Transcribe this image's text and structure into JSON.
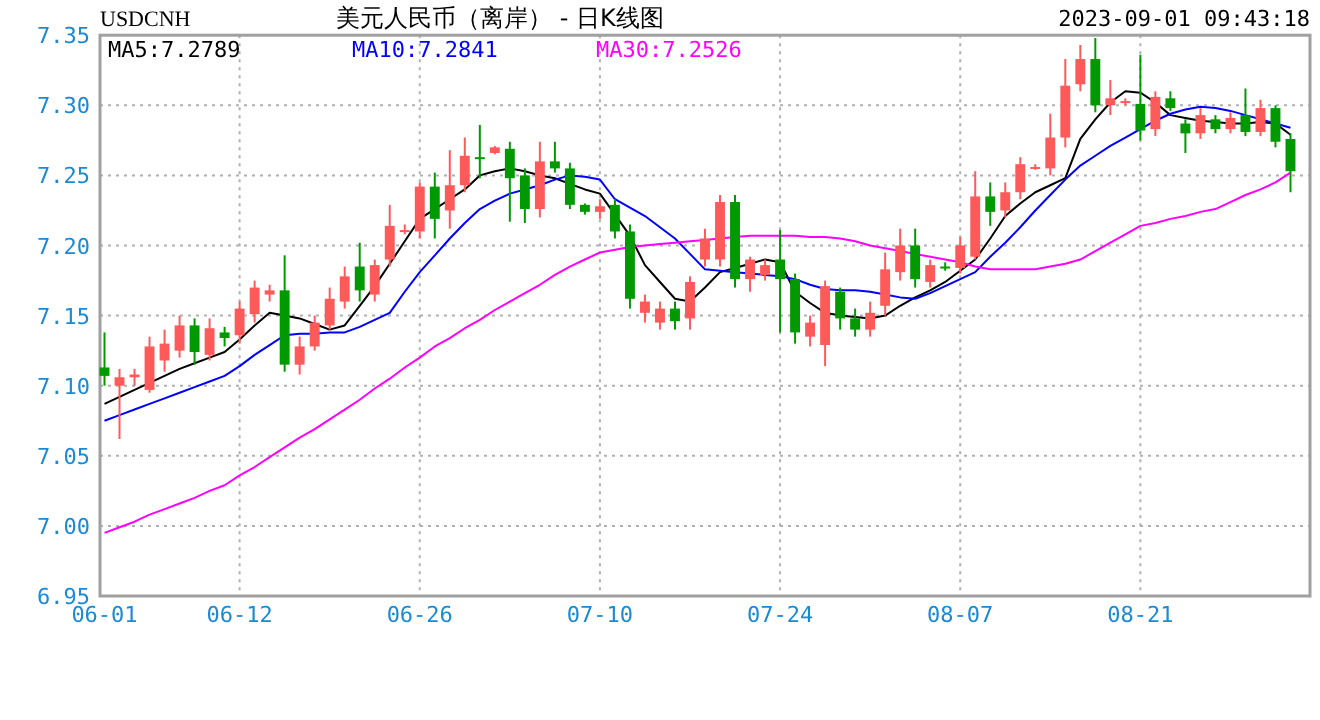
{
  "chart_data": {
    "type": "candlestick",
    "title": "美元人民币（离岸） - 日K线图",
    "subtitle": "USDCNH",
    "annotations": [
      "2023-09-01 09:43:18"
    ],
    "categories": [
      "06-01",
      null,
      null,
      null,
      null,
      null,
      null,
      null,
      null,
      "06-12",
      null,
      null,
      null,
      null,
      null,
      null,
      null,
      null,
      null,
      null,
      null,
      "06-26",
      null,
      null,
      null,
      null,
      null,
      null,
      null,
      null,
      null,
      null,
      null,
      "07-10",
      null,
      null,
      null,
      null,
      null,
      null,
      null,
      null,
      null,
      null,
      null,
      "07-24",
      null,
      null,
      null,
      null,
      null,
      null,
      null,
      null,
      null,
      null,
      null,
      "08-07",
      null,
      null,
      null,
      null,
      null,
      null,
      null,
      null,
      null,
      null,
      null,
      "08-21",
      null,
      null,
      null,
      null,
      null,
      null,
      null,
      null,
      null,
      null
    ],
    "ohlc": [
      [
        7.113,
        7.138,
        7.1,
        7.107
      ],
      [
        7.1,
        7.112,
        7.062,
        7.106
      ],
      [
        7.106,
        7.112,
        7.1,
        7.108
      ],
      [
        7.097,
        7.135,
        7.095,
        7.128
      ],
      [
        7.118,
        7.14,
        7.11,
        7.13
      ],
      [
        7.125,
        7.15,
        7.12,
        7.143
      ],
      [
        7.143,
        7.148,
        7.115,
        7.124
      ],
      [
        7.122,
        7.148,
        7.118,
        7.141
      ],
      [
        7.138,
        7.142,
        7.128,
        7.134
      ],
      [
        7.136,
        7.16,
        7.13,
        7.155
      ],
      [
        7.151,
        7.175,
        7.145,
        7.17
      ],
      [
        7.165,
        7.172,
        7.16,
        7.168
      ],
      [
        7.168,
        7.193,
        7.11,
        7.115
      ],
      [
        7.115,
        7.135,
        7.108,
        7.128
      ],
      [
        7.128,
        7.15,
        7.125,
        7.145
      ],
      [
        7.143,
        7.17,
        7.14,
        7.162
      ],
      [
        7.16,
        7.185,
        7.155,
        7.178
      ],
      [
        7.185,
        7.202,
        7.16,
        7.168
      ],
      [
        7.165,
        7.19,
        7.16,
        7.186
      ],
      [
        7.19,
        7.229,
        7.185,
        7.214
      ],
      [
        7.21,
        7.215,
        7.208,
        7.211
      ],
      [
        7.21,
        7.245,
        7.205,
        7.242
      ],
      [
        7.242,
        7.252,
        7.205,
        7.219
      ],
      [
        7.225,
        7.268,
        7.212,
        7.243
      ],
      [
        7.243,
        7.277,
        7.238,
        7.264
      ],
      [
        7.263,
        7.286,
        7.248,
        7.262
      ],
      [
        7.266,
        7.271,
        7.265,
        7.27
      ],
      [
        7.269,
        7.274,
        7.217,
        7.248
      ],
      [
        7.25,
        7.255,
        7.216,
        7.226
      ],
      [
        7.226,
        7.274,
        7.22,
        7.26
      ],
      [
        7.26,
        7.274,
        7.252,
        7.255
      ],
      [
        7.255,
        7.259,
        7.226,
        7.229
      ],
      [
        7.229,
        7.23,
        7.222,
        7.224
      ],
      [
        7.224,
        7.233,
        7.219,
        7.228
      ],
      [
        7.229,
        7.233,
        7.205,
        7.21
      ],
      [
        7.21,
        7.215,
        7.155,
        7.162
      ],
      [
        7.152,
        7.165,
        7.145,
        7.16
      ],
      [
        7.145,
        7.16,
        7.14,
        7.155
      ],
      [
        7.155,
        7.16,
        7.14,
        7.146
      ],
      [
        7.148,
        7.178,
        7.14,
        7.174
      ],
      [
        7.19,
        7.212,
        7.185,
        7.205
      ],
      [
        7.19,
        7.236,
        7.185,
        7.231
      ],
      [
        7.231,
        7.236,
        7.17,
        7.176
      ],
      [
        7.176,
        7.192,
        7.167,
        7.19
      ],
      [
        7.179,
        7.19,
        7.175,
        7.186
      ],
      [
        7.19,
        7.211,
        7.138,
        7.176
      ],
      [
        7.176,
        7.18,
        7.13,
        7.138
      ],
      [
        7.135,
        7.15,
        7.128,
        7.145
      ],
      [
        7.129,
        7.175,
        7.114,
        7.171
      ],
      [
        7.167,
        7.17,
        7.14,
        7.148
      ],
      [
        7.148,
        7.155,
        7.135,
        7.14
      ],
      [
        7.14,
        7.16,
        7.135,
        7.152
      ],
      [
        7.157,
        7.195,
        7.15,
        7.183
      ],
      [
        7.181,
        7.212,
        7.175,
        7.2
      ],
      [
        7.2,
        7.212,
        7.17,
        7.176
      ],
      [
        7.174,
        7.19,
        7.17,
        7.186
      ],
      [
        7.185,
        7.188,
        7.182,
        7.184
      ],
      [
        7.184,
        7.206,
        7.18,
        7.2
      ],
      [
        7.192,
        7.253,
        7.19,
        7.235
      ],
      [
        7.235,
        7.245,
        7.214,
        7.224
      ],
      [
        7.225,
        7.245,
        7.22,
        7.238
      ],
      [
        7.238,
        7.263,
        7.233,
        7.258
      ],
      [
        7.255,
        7.258,
        7.254,
        7.256
      ],
      [
        7.255,
        7.294,
        7.25,
        7.277
      ],
      [
        7.277,
        7.333,
        7.27,
        7.314
      ],
      [
        7.315,
        7.343,
        7.31,
        7.333
      ],
      [
        7.333,
        7.348,
        7.295,
        7.3
      ],
      [
        7.3,
        7.318,
        7.293,
        7.305
      ],
      [
        7.302,
        7.305,
        7.3,
        7.303
      ],
      [
        7.301,
        7.336,
        7.275,
        7.282
      ],
      [
        7.283,
        7.31,
        7.278,
        7.306
      ],
      [
        7.305,
        7.31,
        7.296,
        7.298
      ],
      [
        7.287,
        7.29,
        7.266,
        7.28
      ],
      [
        7.28,
        7.298,
        7.276,
        7.293
      ],
      [
        7.29,
        7.293,
        7.28,
        7.283
      ],
      [
        7.283,
        7.295,
        7.28,
        7.291
      ],
      [
        7.293,
        7.312,
        7.278,
        7.281
      ],
      [
        7.281,
        7.304,
        7.278,
        7.298
      ],
      [
        7.298,
        7.3,
        7.27,
        7.274
      ],
      [
        7.276,
        7.28,
        7.238,
        7.253
      ]
    ],
    "series": [
      {
        "name": "MA5:7.2789",
        "type": "line",
        "color": "#000000",
        "values": [
          7.087,
          7.092,
          7.097,
          7.102,
          7.107,
          7.112,
          7.116,
          7.12,
          7.124,
          7.133,
          7.143,
          7.152,
          7.15,
          7.148,
          7.144,
          7.14,
          7.143,
          7.157,
          7.171,
          7.187,
          7.203,
          7.219,
          7.226,
          7.233,
          7.24,
          7.25,
          7.253,
          7.255,
          7.253,
          7.25,
          7.248,
          7.244,
          7.24,
          7.237,
          7.222,
          7.207,
          7.186,
          7.174,
          7.162,
          7.16,
          7.17,
          7.181,
          7.184,
          7.187,
          7.19,
          7.188,
          7.167,
          7.159,
          7.152,
          7.15,
          7.149,
          7.148,
          7.15,
          7.157,
          7.163,
          7.168,
          7.174,
          7.182,
          7.19,
          7.205,
          7.221,
          7.23,
          7.238,
          7.243,
          7.248,
          7.276,
          7.29,
          7.302,
          7.31,
          7.309,
          7.302,
          7.293,
          7.291,
          7.289,
          7.288,
          7.287,
          7.287,
          7.288,
          7.287,
          7.279
        ]
      },
      {
        "name": "MA10:7.2841",
        "type": "line",
        "color": "#0000ff",
        "values": [
          7.075,
          7.079,
          7.083,
          7.087,
          7.091,
          7.095,
          7.099,
          7.103,
          7.107,
          7.114,
          7.122,
          7.129,
          7.136,
          7.137,
          7.137,
          7.138,
          7.138,
          7.142,
          7.147,
          7.152,
          7.167,
          7.181,
          7.193,
          7.205,
          7.216,
          7.226,
          7.232,
          7.237,
          7.24,
          7.243,
          7.247,
          7.25,
          7.249,
          7.247,
          7.233,
          7.227,
          7.221,
          7.213,
          7.205,
          7.194,
          7.183,
          7.182,
          7.181,
          7.18,
          7.179,
          7.178,
          7.176,
          7.172,
          7.169,
          7.168,
          7.168,
          7.167,
          7.165,
          7.163,
          7.162,
          7.166,
          7.171,
          7.176,
          7.181,
          7.192,
          7.202,
          7.213,
          7.225,
          7.236,
          7.247,
          7.257,
          7.264,
          7.271,
          7.277,
          7.283,
          7.289,
          7.294,
          7.297,
          7.299,
          7.298,
          7.296,
          7.293,
          7.29,
          7.287,
          7.284
        ]
      },
      {
        "name": "MA30:7.2526",
        "type": "line",
        "color": "#ff00ff",
        "values": [
          6.995,
          6.999,
          7.003,
          7.008,
          7.012,
          7.016,
          7.02,
          7.025,
          7.029,
          7.036,
          7.042,
          7.049,
          7.056,
          7.063,
          7.069,
          7.076,
          7.083,
          7.09,
          7.098,
          7.105,
          7.113,
          7.12,
          7.128,
          7.134,
          7.141,
          7.147,
          7.154,
          7.16,
          7.166,
          7.172,
          7.179,
          7.185,
          7.19,
          7.195,
          7.197,
          7.199,
          7.2,
          7.201,
          7.202,
          7.203,
          7.204,
          7.205,
          7.206,
          7.207,
          7.207,
          7.207,
          7.207,
          7.206,
          7.206,
          7.205,
          7.203,
          7.2,
          7.198,
          7.196,
          7.194,
          7.192,
          7.19,
          7.188,
          7.185,
          7.183,
          7.183,
          7.183,
          7.183,
          7.185,
          7.187,
          7.19,
          7.196,
          7.202,
          7.208,
          7.214,
          7.216,
          7.219,
          7.221,
          7.224,
          7.226,
          7.231,
          7.236,
          7.24,
          7.245,
          7.252
        ]
      }
    ],
    "ylim": [
      6.95,
      7.35
    ],
    "yticks": [
      {
        "value": 6.95,
        "label": "6.95"
      },
      {
        "value": 7.0,
        "label": "7.00"
      },
      {
        "value": 7.05,
        "label": "7.05"
      },
      {
        "value": 7.1,
        "label": "7.10"
      },
      {
        "value": 7.15,
        "label": "7.15"
      },
      {
        "value": 7.2,
        "label": "7.20"
      },
      {
        "value": 7.25,
        "label": "7.25"
      },
      {
        "value": 7.3,
        "label": "7.30"
      },
      {
        "value": 7.35,
        "label": "7.35"
      }
    ],
    "grid": true,
    "legend": "top left"
  }
}
